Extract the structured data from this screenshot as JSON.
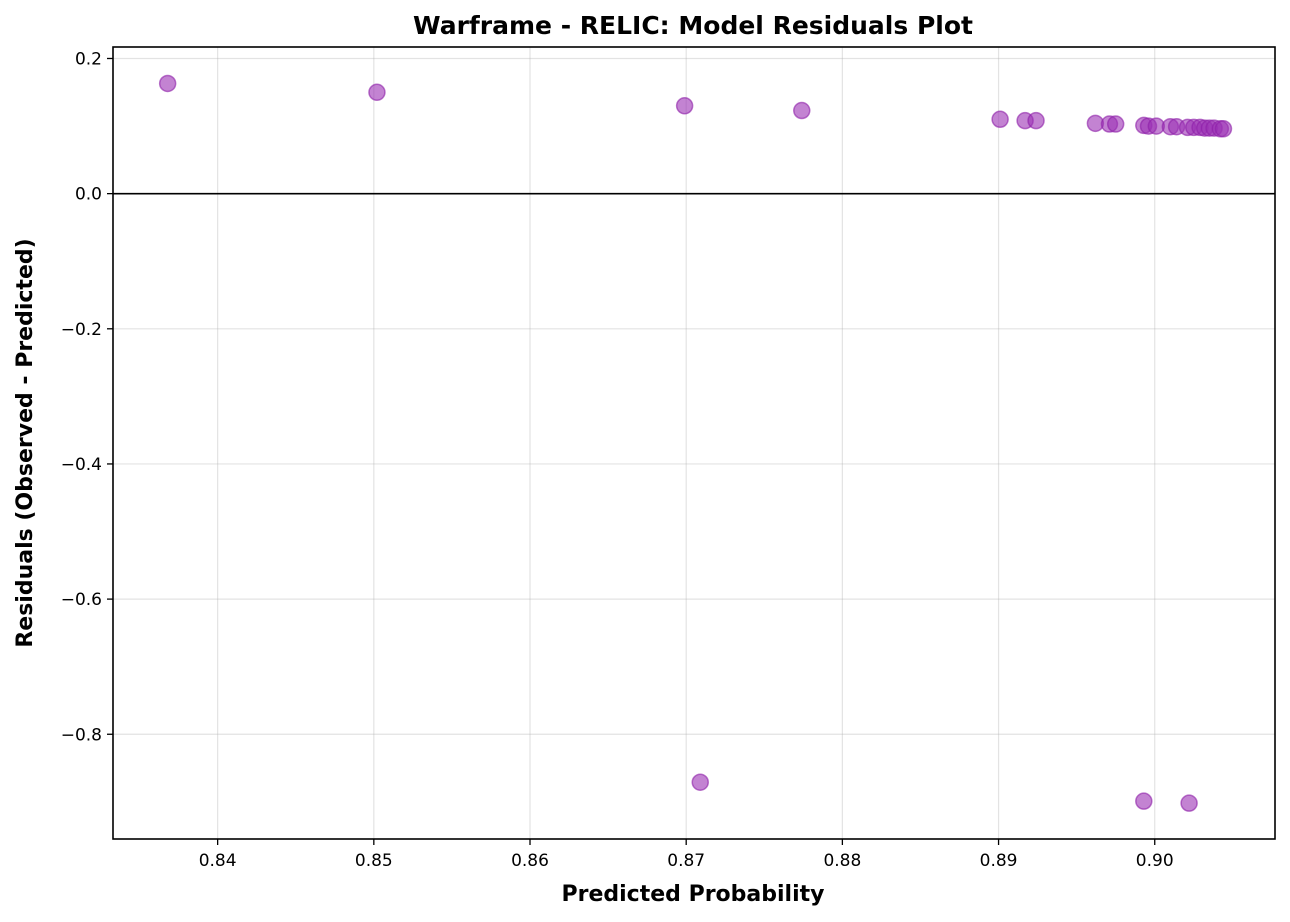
{
  "chart_data": {
    "type": "scatter",
    "title": "Warframe - RELIC: Model Residuals Plot",
    "xlabel": "Predicted Probability",
    "ylabel": "Residuals (Observed - Predicted)",
    "xlim": [
      0.8333,
      0.9077
    ],
    "ylim": [
      -0.955,
      0.217
    ],
    "xticks": [
      0.84,
      0.85,
      0.86,
      0.87,
      0.88,
      0.89,
      0.9
    ],
    "xtick_labels": [
      "0.84",
      "0.85",
      "0.86",
      "0.87",
      "0.88",
      "0.89",
      "0.90"
    ],
    "yticks": [
      0.2,
      0.0,
      -0.2,
      -0.4,
      -0.6,
      -0.8
    ],
    "ytick_labels": [
      "0.2",
      "0.0",
      "−0.2",
      "−0.4",
      "−0.6",
      "−0.8"
    ],
    "reference_line_y": 0.0,
    "grid": true,
    "point_color": "#9b30b4",
    "points": [
      {
        "x": 0.8368,
        "y": 0.163
      },
      {
        "x": 0.8502,
        "y": 0.15
      },
      {
        "x": 0.8699,
        "y": 0.13
      },
      {
        "x": 0.8774,
        "y": 0.123
      },
      {
        "x": 0.8901,
        "y": 0.11
      },
      {
        "x": 0.8917,
        "y": 0.108
      },
      {
        "x": 0.8924,
        "y": 0.108
      },
      {
        "x": 0.8962,
        "y": 0.104
      },
      {
        "x": 0.8971,
        "y": 0.103
      },
      {
        "x": 0.8975,
        "y": 0.103
      },
      {
        "x": 0.8993,
        "y": 0.101
      },
      {
        "x": 0.8996,
        "y": 0.1
      },
      {
        "x": 0.9001,
        "y": 0.1
      },
      {
        "x": 0.901,
        "y": 0.099
      },
      {
        "x": 0.9014,
        "y": 0.099
      },
      {
        "x": 0.9021,
        "y": 0.098
      },
      {
        "x": 0.9025,
        "y": 0.098
      },
      {
        "x": 0.9029,
        "y": 0.098
      },
      {
        "x": 0.9032,
        "y": 0.097
      },
      {
        "x": 0.9035,
        "y": 0.097
      },
      {
        "x": 0.9038,
        "y": 0.097
      },
      {
        "x": 0.9042,
        "y": 0.096
      },
      {
        "x": 0.9044,
        "y": 0.096
      },
      {
        "x": 0.8709,
        "y": -0.871
      },
      {
        "x": 0.8993,
        "y": -0.899
      },
      {
        "x": 0.9022,
        "y": -0.902
      }
    ]
  }
}
